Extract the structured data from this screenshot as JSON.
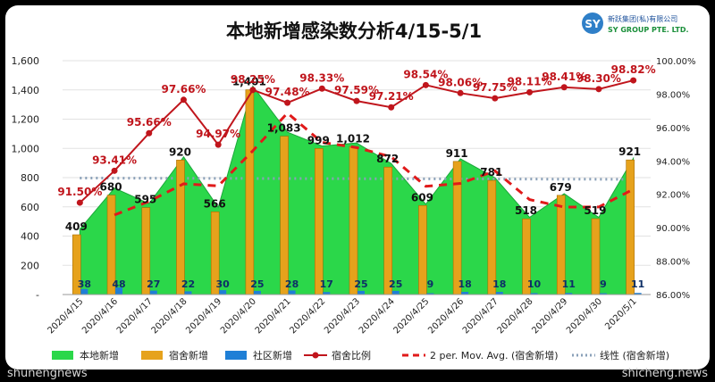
{
  "watermark_left": "shunengnews",
  "watermark_right": "shicheng.news",
  "logo": {
    "mark": "SY",
    "name_cn": "新跃集团(私)有限公司",
    "name_en": "SY GROUP PTE. LTD."
  },
  "chart_data": {
    "type": "bar",
    "title": "本地新增感染数分析4/15-5/1",
    "categories": [
      "2020/4/15",
      "2020/4/16",
      "2020/4/17",
      "2020/4/18",
      "2020/4/19",
      "2020/4/20",
      "2020/4/21",
      "2020/4/22",
      "2020/4/23",
      "2020/4/24",
      "2020/4/25",
      "2020/4/26",
      "2020/4/27",
      "2020/4/28",
      "2020/4/29",
      "2020/4/30",
      "2020/5/1"
    ],
    "left_axis": {
      "min": 0,
      "max": 1600,
      "step": 200,
      "ticks": [
        "-",
        "200",
        "400",
        "600",
        "800",
        "1,000",
        "1,200",
        "1,400",
        "1,600"
      ]
    },
    "right_axis": {
      "min": 86,
      "max": 100,
      "step": 2,
      "ticks": [
        "86.00%",
        "88.00%",
        "90.00%",
        "92.00%",
        "94.00%",
        "96.00%",
        "98.00%",
        "100.00%"
      ]
    },
    "series": [
      {
        "name": "本地新增",
        "type": "area",
        "color": "#2bd74a",
        "values": [
          447,
          728,
          622,
          942,
          596,
          1426,
          1111,
          1016,
          1037,
          897,
          618,
          929,
          799,
          528,
          690,
          528,
          932
        ]
      },
      {
        "name": "宿舍新增",
        "type": "bar",
        "color": "#e6a21c",
        "values": [
          409,
          680,
          595,
          920,
          566,
          1401,
          1083,
          999,
          1012,
          872,
          609,
          911,
          781,
          518,
          679,
          519,
          921
        ],
        "labels": [
          "409",
          "680",
          "595",
          "920",
          "566",
          "1,401",
          "1,083",
          "999",
          "1,012",
          "872",
          "609",
          "911",
          "781",
          "518",
          "679",
          "519",
          "921"
        ]
      },
      {
        "name": "社区新增",
        "type": "bar",
        "color": "#1f7fd6",
        "values": [
          38,
          48,
          27,
          22,
          30,
          25,
          28,
          17,
          25,
          25,
          9,
          18,
          18,
          10,
          11,
          9,
          11
        ],
        "labels": [
          "38",
          "48",
          "27",
          "22",
          "30",
          "25",
          "28",
          "17",
          "25",
          "25",
          "9",
          "18",
          "18",
          "10",
          "11",
          "9",
          "11"
        ]
      },
      {
        "name": "宿舍比例",
        "type": "line",
        "axis": "right",
        "color": "#c0151c",
        "values": [
          91.5,
          93.41,
          95.66,
          97.66,
          94.97,
          98.25,
          97.48,
          98.33,
          97.59,
          97.21,
          98.54,
          98.06,
          97.75,
          98.11,
          98.41,
          98.3,
          98.82
        ],
        "labels": [
          "91.50%",
          "93.41%",
          "95.66%",
          "97.66%",
          "94.97%",
          "98.25%",
          "97.48%",
          "98.33%",
          "97.59%",
          "97.21%",
          "98.54%",
          "98.06%",
          "97.75%",
          "98.11%",
          "98.41%",
          "98.30%",
          "98.82%"
        ]
      },
      {
        "name": "2 per. Mov. Avg. (宿舍新增)",
        "type": "dashed",
        "color": "#e01a1a"
      },
      {
        "name": "线性 (宿舍新增)",
        "type": "dotted",
        "color": "#8aa0b8"
      }
    ]
  }
}
